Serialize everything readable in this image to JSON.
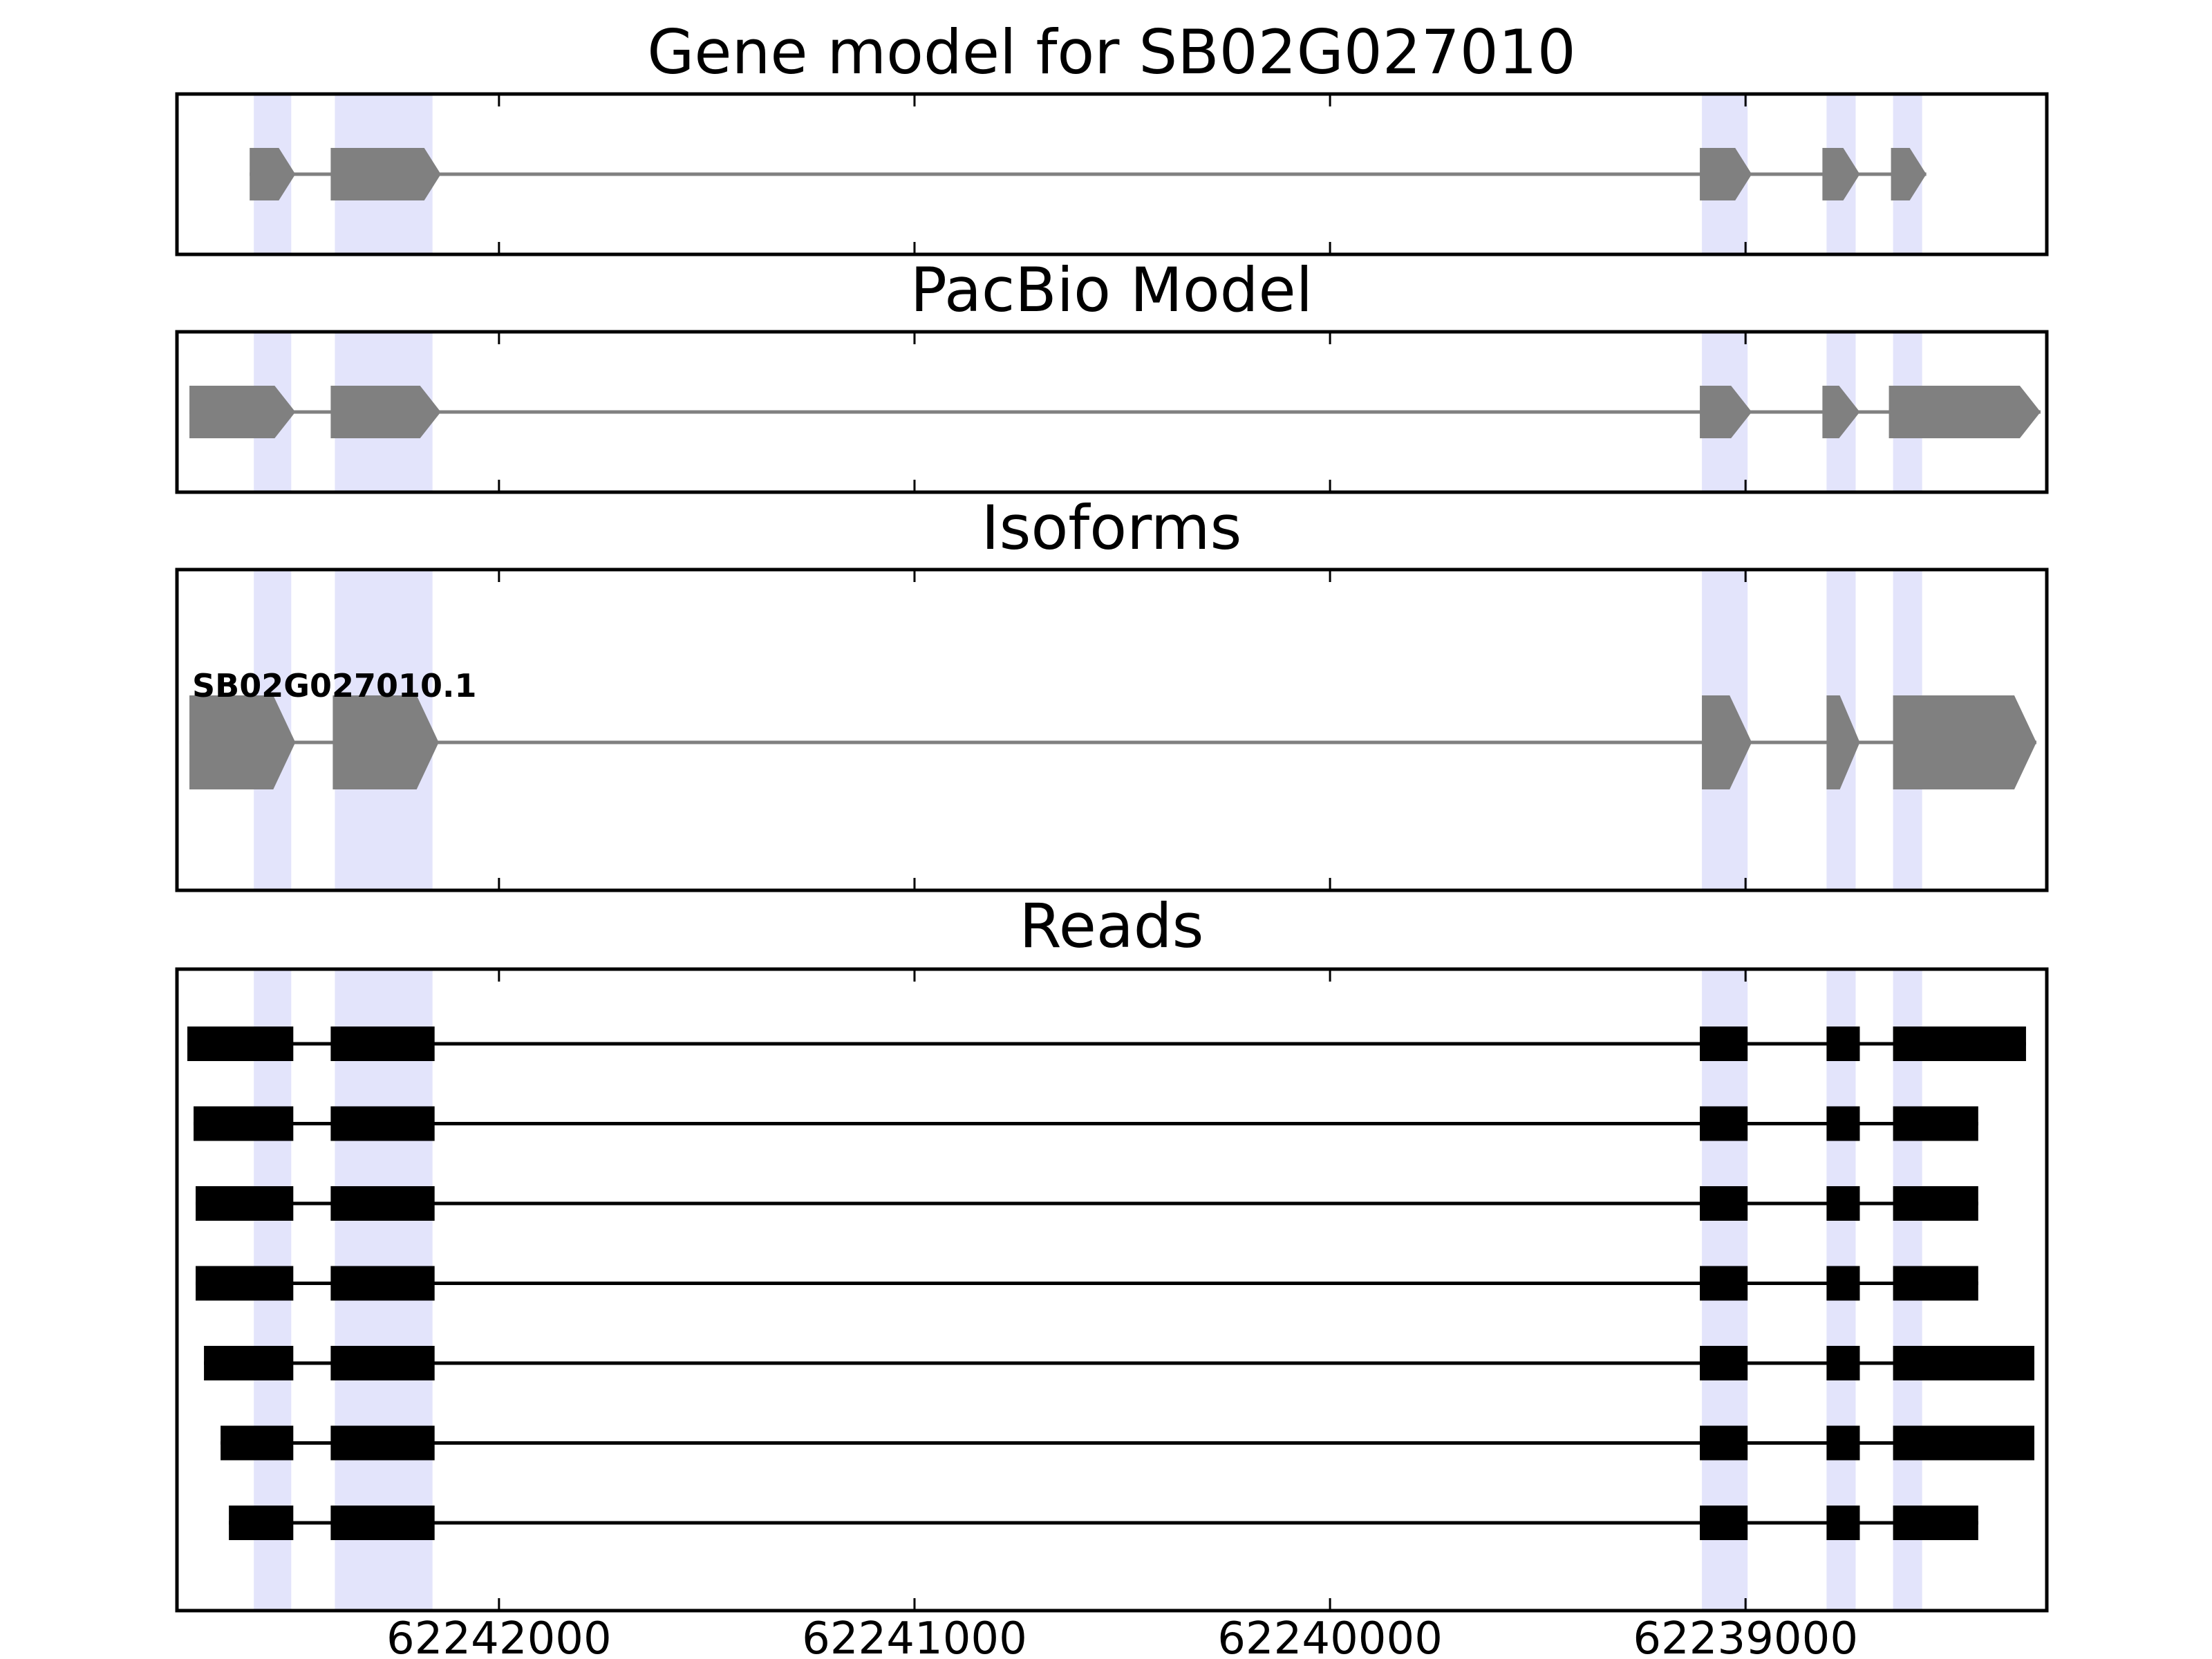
{
  "figure": {
    "genomic_range": [
      62242775,
      62238275
    ],
    "x_ticks": [
      62242000,
      62241000,
      62240000,
      62239000
    ],
    "x_tick_labels": [
      "62242000",
      "62241000",
      "62240000",
      "62239000"
    ],
    "highlight_regions": [
      [
        62242590,
        62242500
      ],
      [
        62242395,
        62242160
      ],
      [
        62239105,
        62238995
      ],
      [
        62238805,
        62238735
      ],
      [
        62238645,
        62238575
      ]
    ],
    "colors": {
      "highlight": "#e3e4fb",
      "gene_feature": "#808080",
      "intron_gray": "#808080",
      "read_feature": "#000000"
    }
  },
  "panels": {
    "gene_model": {
      "title": "Gene model for SB02G027010",
      "exons": [
        [
          62242600,
          62242490
        ],
        [
          62242405,
          62242140
        ],
        [
          62239110,
          62238985
        ],
        [
          62238815,
          62238725
        ],
        [
          62238650,
          62238565
        ]
      ]
    },
    "pacbio_model": {
      "title": "PacBio Model",
      "exons": [
        [
          62242745,
          62242490
        ],
        [
          62242405,
          62242140
        ],
        [
          62239110,
          62238985
        ],
        [
          62238815,
          62238725
        ],
        [
          62238655,
          62238290
        ]
      ]
    },
    "isoforms": {
      "title": "Isoforms",
      "label": "SB02G027010.1",
      "exons": [
        [
          62242745,
          62242490
        ],
        [
          62242400,
          62242145
        ],
        [
          62239105,
          62238985
        ],
        [
          62238805,
          62238725
        ],
        [
          62238645,
          62238300
        ]
      ]
    },
    "reads": {
      "title": "Reads",
      "reads": [
        [
          [
            62242750,
            62242495
          ],
          [
            62242405,
            62242155
          ],
          [
            62239110,
            62238995
          ],
          [
            62238805,
            62238725
          ],
          [
            62238645,
            62238325
          ]
        ],
        [
          [
            62242735,
            62242495
          ],
          [
            62242405,
            62242155
          ],
          [
            62239110,
            62238995
          ],
          [
            62238805,
            62238725
          ],
          [
            62238645,
            62238440
          ]
        ],
        [
          [
            62242730,
            62242495
          ],
          [
            62242405,
            62242155
          ],
          [
            62239110,
            62238995
          ],
          [
            62238805,
            62238725
          ],
          [
            62238645,
            62238440
          ]
        ],
        [
          [
            62242730,
            62242495
          ],
          [
            62242405,
            62242155
          ],
          [
            62239110,
            62238995
          ],
          [
            62238805,
            62238725
          ],
          [
            62238645,
            62238440
          ]
        ],
        [
          [
            62242710,
            62242495
          ],
          [
            62242405,
            62242155
          ],
          [
            62239110,
            62238995
          ],
          [
            62238805,
            62238725
          ],
          [
            62238645,
            62238305
          ]
        ],
        [
          [
            62242670,
            62242495
          ],
          [
            62242405,
            62242155
          ],
          [
            62239110,
            62238995
          ],
          [
            62238805,
            62238725
          ],
          [
            62238645,
            62238305
          ]
        ],
        [
          [
            62242650,
            62242495
          ],
          [
            62242405,
            62242155
          ],
          [
            62239110,
            62238995
          ],
          [
            62238805,
            62238725
          ],
          [
            62238645,
            62238440
          ]
        ]
      ]
    }
  }
}
